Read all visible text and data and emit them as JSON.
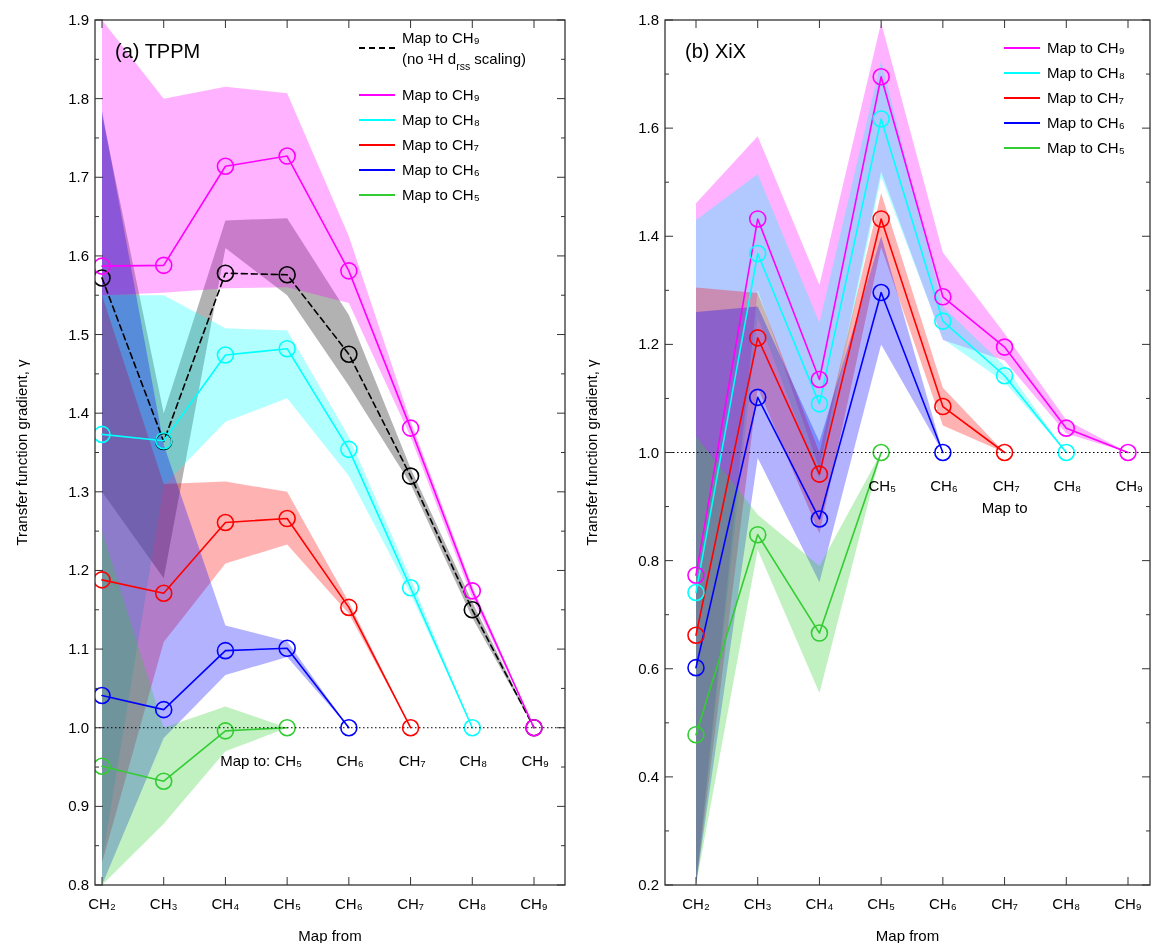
{
  "chart_data": [
    {
      "type": "line",
      "title": "(a) TPPM",
      "xlabel": "Map from",
      "ylabel": "Transfer function gradient, γ",
      "categories": [
        "CH₂",
        "CH₃",
        "CH₄",
        "CH₅",
        "CH₆",
        "CH₇",
        "CH₈",
        "CH₉"
      ],
      "series": [
        {
          "name": "Map to CH₉\n(no ¹H d$_{rss}$ scaling)",
          "color": "#000000",
          "line_style": "dashed",
          "values": [
            1.572,
            1.364,
            1.578,
            1.576,
            1.475,
            1.32,
            1.15,
            1.0
          ],
          "lower": [
            1.3,
            1.19,
            1.61,
            1.55,
            1.435,
            1.31,
            1.14,
            1.0
          ],
          "upper": [
            1.78,
            1.4,
            1.645,
            1.648,
            1.525,
            1.33,
            1.16,
            1.0
          ]
        },
        {
          "name": "Map to CH₉",
          "color": "#ff00ff",
          "values": [
            1.587,
            1.588,
            1.714,
            1.727,
            1.581,
            1.381,
            1.174,
            1.0
          ],
          "lower": [
            1.55,
            1.553,
            1.559,
            1.56,
            1.54,
            1.37,
            1.165,
            1.0
          ],
          "upper": [
            1.9,
            1.8,
            1.815,
            1.807,
            1.625,
            1.39,
            1.18,
            1.0
          ]
        },
        {
          "name": "Map to CH₈",
          "color": "#00ffff",
          "values": [
            1.373,
            1.365,
            1.474,
            1.482,
            1.354,
            1.178,
            1.0,
            null
          ],
          "lower": [
            0.83,
            1.308,
            1.389,
            1.419,
            1.32,
            1.17,
            1.0,
            null
          ],
          "upper": [
            1.55,
            1.55,
            1.508,
            1.505,
            1.37,
            1.19,
            1.0,
            null
          ]
        },
        {
          "name": "Map to CH₇",
          "color": "#ff0000",
          "values": [
            1.188,
            1.171,
            1.261,
            1.266,
            1.153,
            1.0,
            null,
            null
          ],
          "lower": [
            0.828,
            1.109,
            1.209,
            1.233,
            1.145,
            1.0,
            null,
            null
          ],
          "upper": [
            1.55,
            1.31,
            1.313,
            1.3,
            1.16,
            1.0,
            null,
            null
          ]
        },
        {
          "name": "Map to CH₆",
          "color": "#0000ff",
          "values": [
            1.041,
            1.023,
            1.098,
            1.101,
            1.0,
            null,
            null,
            null
          ],
          "lower": [
            0.8,
            0.987,
            1.067,
            1.09,
            1.0,
            null,
            null,
            null
          ],
          "upper": [
            1.785,
            1.36,
            1.13,
            1.11,
            1.0,
            null,
            null,
            null
          ]
        },
        {
          "name": "Map to CH₅",
          "color": "#33cc33",
          "values": [
            0.951,
            0.932,
            0.996,
            1.0,
            null,
            null,
            null,
            null
          ],
          "lower": [
            0.8,
            0.878,
            0.97,
            1.0,
            null,
            null,
            null,
            null
          ],
          "upper": [
            1.25,
            1.0,
            1.027,
            1.0,
            null,
            null,
            null,
            null
          ]
        }
      ],
      "ylim": [
        0.8,
        1.9
      ],
      "yticks": [
        {
          "value": 0.8,
          "label": "0.8"
        },
        {
          "value": 0.85,
          "label": null
        },
        {
          "value": 0.9,
          "label": "0.9"
        },
        {
          "value": 0.95,
          "label": null
        },
        {
          "value": 1.0,
          "label": "1.0"
        },
        {
          "value": 1.05,
          "label": null
        },
        {
          "value": 1.1,
          "label": "1.1"
        },
        {
          "value": 1.15,
          "label": null
        },
        {
          "value": 1.2,
          "label": "1.2"
        },
        {
          "value": 1.25,
          "label": null
        },
        {
          "value": 1.3,
          "label": "1.3"
        },
        {
          "value": 1.35,
          "label": null
        },
        {
          "value": 1.4,
          "label": "1.4"
        },
        {
          "value": 1.45,
          "label": null
        },
        {
          "value": 1.5,
          "label": "1.5"
        },
        {
          "value": 1.55,
          "label": null
        },
        {
          "value": 1.6,
          "label": "1.6"
        },
        {
          "value": 1.65,
          "label": null
        },
        {
          "value": 1.7,
          "label": "1.7"
        },
        {
          "value": 1.75,
          "label": null
        },
        {
          "value": 1.8,
          "label": "1.8"
        },
        {
          "value": 1.85,
          "label": null
        },
        {
          "value": 1.9,
          "label": "1.9"
        }
      ],
      "ref_lines": [
        {
          "axis": "y",
          "value": 1.0,
          "line_style": "dotted",
          "color": "#000000"
        }
      ],
      "annotations": [
        {
          "text": "Map to: CH₅",
          "x": "CH₅",
          "y": 1.0
        },
        {
          "text": "CH₆",
          "x": "CH₆",
          "y": 1.0
        },
        {
          "text": "CH₇",
          "x": "CH₇",
          "y": 1.0
        },
        {
          "text": "CH₈",
          "x": "CH₈",
          "y": 1.0
        },
        {
          "text": "CH₉",
          "x": "CH₉",
          "y": 1.0
        }
      ],
      "marker": "circle",
      "legend": "top right",
      "grid": false
    },
    {
      "type": "line",
      "title": "(b) XiX",
      "xlabel": "Map from",
      "ylabel": "Transfer function gradient, γ",
      "categories": [
        "CH₂",
        "CH₃",
        "CH₄",
        "CH₅",
        "CH₆",
        "CH₇",
        "CH₈",
        "CH₉"
      ],
      "series": [
        {
          "name": "Map to CH₉",
          "color": "#ff00ff",
          "values": [
            0.773,
            1.432,
            1.135,
            1.695,
            1.288,
            1.195,
            1.045,
            1.0
          ],
          "lower": [
            0.2,
            1.3,
            0.97,
            1.52,
            1.208,
            1.17,
            1.035,
            1.0
          ],
          "upper": [
            1.461,
            1.585,
            1.31,
            1.795,
            1.37,
            1.22,
            1.06,
            1.0
          ]
        },
        {
          "name": "Map to CH₈",
          "color": "#00ffff",
          "values": [
            0.741,
            1.368,
            1.09,
            1.617,
            1.243,
            1.142,
            1.0,
            null
          ],
          "lower": [
            0.2,
            1.25,
            0.95,
            1.51,
            1.21,
            1.13,
            1.0,
            null
          ],
          "upper": [
            1.43,
            1.515,
            1.24,
            1.725,
            1.27,
            1.16,
            1.0,
            null
          ]
        },
        {
          "name": "Map to CH₇",
          "color": "#ff0000",
          "values": [
            0.662,
            1.212,
            0.96,
            1.432,
            1.085,
            1.0,
            null,
            null
          ],
          "lower": [
            0.2,
            1.12,
            0.85,
            1.38,
            1.05,
            1.0,
            null,
            null
          ],
          "upper": [
            1.305,
            1.295,
            1.0,
            1.48,
            1.12,
            1.0,
            null,
            null
          ]
        },
        {
          "name": "Map to CH₆",
          "color": "#0000ff",
          "values": [
            0.602,
            1.102,
            0.877,
            1.296,
            1.0,
            null,
            null,
            null
          ],
          "lower": [
            0.2,
            0.99,
            0.76,
            1.2,
            1.0,
            null,
            null,
            null
          ],
          "upper": [
            1.26,
            1.27,
            1.02,
            1.4,
            1.0,
            null,
            null,
            null
          ]
        },
        {
          "name": "Map to CH₅",
          "color": "#33cc33",
          "values": [
            0.478,
            0.848,
            0.666,
            1.0,
            null,
            null,
            null,
            null
          ],
          "lower": [
            0.2,
            0.82,
            0.555,
            1.0,
            null,
            null,
            null,
            null
          ],
          "upper": [
            1.03,
            0.885,
            0.79,
            1.0,
            null,
            null,
            null,
            null
          ]
        }
      ],
      "ylim": [
        0.2,
        1.8
      ],
      "yticks": [
        {
          "value": 0.2,
          "label": "0.2"
        },
        {
          "value": 0.3,
          "label": null
        },
        {
          "value": 0.4,
          "label": "0.4"
        },
        {
          "value": 0.5,
          "label": null
        },
        {
          "value": 0.6,
          "label": "0.6"
        },
        {
          "value": 0.7,
          "label": null
        },
        {
          "value": 0.8,
          "label": "0.8"
        },
        {
          "value": 0.9,
          "label": null
        },
        {
          "value": 1.0,
          "label": "1.0"
        },
        {
          "value": 1.1,
          "label": null
        },
        {
          "value": 1.2,
          "label": "1.2"
        },
        {
          "value": 1.3,
          "label": null
        },
        {
          "value": 1.4,
          "label": "1.4"
        },
        {
          "value": 1.5,
          "label": null
        },
        {
          "value": 1.6,
          "label": "1.6"
        },
        {
          "value": 1.7,
          "label": null
        },
        {
          "value": 1.8,
          "label": "1.8"
        }
      ],
      "ref_lines": [
        {
          "axis": "y",
          "value": 1.0,
          "line_style": "dotted",
          "color": "#000000"
        }
      ],
      "annotations": [
        {
          "text": "CH₅",
          "x": "CH₅",
          "y": 1.0
        },
        {
          "text": "CH₆",
          "x": "CH₆",
          "y": 1.0
        },
        {
          "text": "CH₇",
          "x": "CH₇",
          "y": 1.0
        },
        {
          "text": "CH₈",
          "x": "CH₈",
          "y": 1.0
        },
        {
          "text": "CH₉",
          "x": "CH₉",
          "y": 1.0
        },
        "Map to"
      ],
      "marker": "circle",
      "legend": "top right",
      "grid": false
    }
  ]
}
